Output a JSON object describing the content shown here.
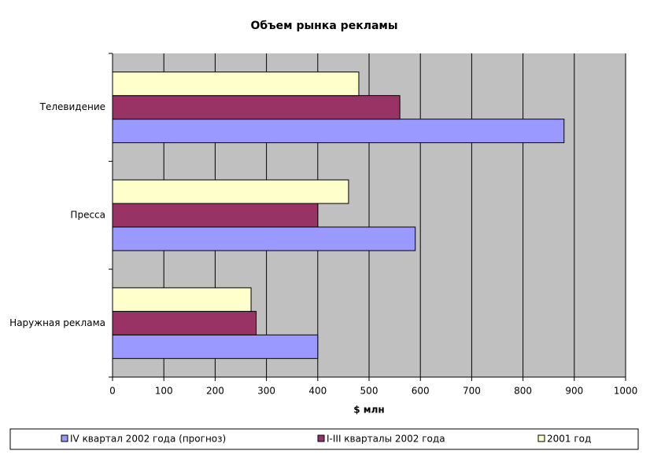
{
  "chart_data": {
    "type": "bar",
    "orientation": "horizontal",
    "title": "Объем рынка рекламы",
    "x_label": "$ млн",
    "categories": [
      "Телевидение",
      "Пресса",
      "Наружная реклама"
    ],
    "series": [
      {
        "name": "IV квартал 2002 года (прогноз)",
        "color": "#9999ff",
        "values": [
          880,
          590,
          400
        ]
      },
      {
        "name": "I-III кварталы 2002 года",
        "color": "#993366",
        "values": [
          560,
          400,
          280
        ]
      },
      {
        "name": "2001 год",
        "color": "#ffffcc",
        "values": [
          480,
          460,
          270
        ]
      }
    ],
    "xlim": [
      0,
      1000
    ],
    "xticks": [
      0,
      100,
      200,
      300,
      400,
      500,
      600,
      700,
      800,
      900,
      1000
    ],
    "grid": true,
    "legend": "bottom"
  }
}
